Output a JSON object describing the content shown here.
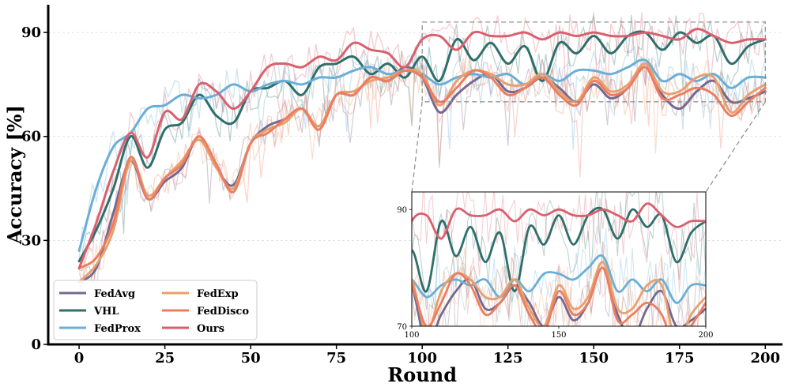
{
  "chart_data": {
    "type": "line",
    "title": "",
    "xlabel": "Round",
    "ylabel": "Accuracy [%]",
    "xlim": [
      -9,
      205
    ],
    "ylim": [
      0,
      98
    ],
    "xticks": [
      0,
      25,
      50,
      75,
      100,
      125,
      150,
      175,
      200
    ],
    "yticks": [
      0,
      30,
      60,
      90
    ],
    "grid": "horizontal dashed",
    "legend": {
      "placement": "lower-left",
      "columns": 2
    },
    "series": [
      {
        "name": "FedAvg",
        "color": "#76688f",
        "x": [
          0,
          5,
          10,
          15,
          20,
          25,
          30,
          35,
          40,
          45,
          50,
          55,
          60,
          65,
          70,
          75,
          80,
          85,
          90,
          95,
          100,
          105,
          110,
          115,
          120,
          125,
          130,
          135,
          140,
          145,
          150,
          155,
          160,
          165,
          170,
          175,
          180,
          185,
          190,
          195,
          200
        ],
        "y": [
          18,
          22,
          38,
          53,
          42,
          47,
          51,
          60,
          51,
          46,
          58,
          63,
          65,
          68,
          63,
          72,
          72,
          77,
          76,
          80,
          77,
          67,
          72,
          76,
          78,
          73,
          74,
          77,
          74,
          70,
          75,
          71,
          74,
          80,
          72,
          68,
          73,
          76,
          70,
          71,
          73
        ]
      },
      {
        "name": "VHL",
        "color": "#2e6f6c",
        "x": [
          0,
          5,
          10,
          15,
          20,
          25,
          30,
          35,
          40,
          45,
          50,
          55,
          60,
          65,
          70,
          75,
          80,
          85,
          90,
          95,
          100,
          105,
          110,
          115,
          120,
          125,
          130,
          135,
          140,
          145,
          150,
          155,
          160,
          165,
          170,
          175,
          180,
          185,
          190,
          195,
          200
        ],
        "y": [
          24,
          33,
          45,
          60,
          51,
          62,
          64,
          72,
          66,
          64,
          73,
          74,
          76,
          72,
          80,
          81,
          83,
          78,
          81,
          77,
          83,
          76,
          88,
          82,
          87,
          81,
          86,
          76,
          87,
          84,
          89,
          84,
          89,
          90,
          85,
          90,
          87,
          89,
          81,
          86,
          88
        ]
      },
      {
        "name": "FedProx",
        "color": "#6baed6",
        "x": [
          0,
          5,
          10,
          15,
          20,
          25,
          30,
          35,
          40,
          45,
          50,
          55,
          60,
          65,
          70,
          75,
          80,
          85,
          90,
          95,
          100,
          105,
          110,
          115,
          120,
          125,
          130,
          135,
          140,
          145,
          150,
          155,
          160,
          165,
          170,
          175,
          180,
          185,
          190,
          195,
          200
        ],
        "y": [
          27,
          45,
          57,
          61,
          68,
          69,
          72,
          71,
          72,
          75,
          73,
          75,
          76,
          75,
          77,
          77,
          79,
          80,
          78,
          79,
          78,
          75,
          77,
          78,
          77,
          78,
          75,
          78,
          76,
          79,
          79,
          78,
          80,
          82,
          76,
          78,
          76,
          78,
          74,
          77,
          77
        ]
      },
      {
        "name": "FedExp",
        "color": "#e8a06e",
        "x": [
          0,
          5,
          10,
          15,
          20,
          25,
          30,
          35,
          40,
          45,
          50,
          55,
          60,
          65,
          70,
          75,
          80,
          85,
          90,
          95,
          100,
          105,
          110,
          115,
          120,
          125,
          130,
          135,
          140,
          145,
          150,
          155,
          160,
          165,
          170,
          175,
          180,
          185,
          190,
          195,
          200
        ],
        "y": [
          18,
          23,
          33,
          53,
          43,
          48,
          53,
          59,
          51,
          45,
          58,
          62,
          64,
          68,
          63,
          72,
          73,
          76,
          77,
          79,
          78,
          69,
          76,
          79,
          78,
          75,
          75,
          78,
          73,
          70,
          77,
          73,
          75,
          81,
          73,
          73,
          77,
          77,
          67,
          72,
          75
        ]
      },
      {
        "name": "FedDisco",
        "color": "#ec7e5f",
        "x": [
          0,
          5,
          10,
          15,
          20,
          25,
          30,
          35,
          40,
          45,
          50,
          55,
          60,
          65,
          70,
          75,
          80,
          85,
          90,
          95,
          100,
          105,
          110,
          115,
          120,
          125,
          130,
          135,
          140,
          145,
          150,
          155,
          160,
          165,
          170,
          175,
          180,
          185,
          190,
          195,
          200
        ],
        "y": [
          22,
          25,
          35,
          54,
          42,
          48,
          52,
          60,
          52,
          44,
          58,
          61,
          65,
          68,
          62,
          72,
          72,
          77,
          76,
          79,
          77,
          70,
          74,
          79,
          77,
          72,
          74,
          77,
          72,
          69,
          76,
          72,
          74,
          80,
          71,
          72,
          74,
          72,
          66,
          70,
          74
        ]
      },
      {
        "name": "Ours",
        "color": "#d9606e",
        "x": [
          0,
          5,
          10,
          15,
          20,
          25,
          30,
          35,
          40,
          45,
          50,
          55,
          60,
          65,
          70,
          75,
          80,
          85,
          90,
          95,
          100,
          105,
          110,
          115,
          120,
          125,
          130,
          135,
          140,
          145,
          150,
          155,
          160,
          165,
          170,
          175,
          180,
          185,
          190,
          195,
          200
        ],
        "y": [
          22,
          35,
          50,
          61,
          54,
          67,
          65,
          75,
          73,
          68,
          73,
          80,
          81,
          80,
          83,
          82,
          87,
          85,
          84,
          80,
          88,
          89,
          85,
          90,
          89,
          89,
          90,
          88,
          90,
          89,
          90,
          89,
          89,
          90,
          89,
          88,
          91,
          89,
          87,
          88,
          88
        ]
      }
    ],
    "inset": {
      "xlim": [
        100,
        200
      ],
      "ylim": [
        70,
        93
      ],
      "xticks": [
        100,
        150,
        200
      ],
      "yticks": [
        70,
        90
      ],
      "source_region": {
        "x": [
          100,
          200
        ],
        "y": [
          70,
          93
        ]
      }
    }
  }
}
